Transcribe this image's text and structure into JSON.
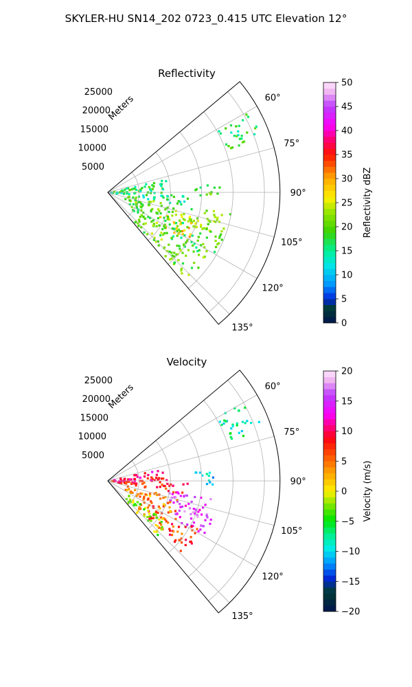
{
  "figure": {
    "title": "SKYLER-HU  SN14_202  0723_0.415 UTC Elevation 12°"
  },
  "chart_data": [
    {
      "type": "heatmap",
      "subtype": "polar-sector",
      "title": "Reflectivity",
      "range_axis_label": "Meters",
      "range_ticks": [
        5000,
        10000,
        15000,
        20000,
        25000
      ],
      "range_tick_labels": [
        "5000",
        "10000",
        "15000",
        "20000",
        "25000"
      ],
      "rlim": [
        0,
        27500
      ],
      "theta_ticks_deg": [
        60,
        75,
        90,
        105,
        120,
        135
      ],
      "theta_tick_labels": [
        "60°",
        "75°",
        "90°",
        "105°",
        "120°",
        "135°"
      ],
      "theta_range_deg": [
        50,
        140
      ],
      "grid": true,
      "colorbar": {
        "label": "Reflectivity dBZ",
        "min": 0,
        "max": 50,
        "ticks": [
          0,
          5,
          10,
          15,
          20,
          25,
          30,
          35,
          40,
          45,
          50
        ],
        "tick_labels": [
          "0",
          "5",
          "10",
          "15",
          "20",
          "25",
          "30",
          "35",
          "40",
          "45",
          "50"
        ]
      },
      "echo_regions": [
        {
          "theta_deg": [
            78,
            92
          ],
          "range_m": [
            1000,
            9500
          ],
          "value": 17
        },
        {
          "theta_deg": [
            92,
            100
          ],
          "range_m": [
            500,
            13000
          ],
          "value": 15
        },
        {
          "theta_deg": [
            100,
            112
          ],
          "range_m": [
            3000,
            20000
          ],
          "value": 21
        },
        {
          "theta_deg": [
            106,
            112
          ],
          "range_m": [
            12000,
            17000
          ],
          "value": 25
        },
        {
          "theta_deg": [
            110,
            122
          ],
          "range_m": [
            9000,
            15000
          ],
          "value": 28
        },
        {
          "theta_deg": [
            112,
            126
          ],
          "range_m": [
            4000,
            20000
          ],
          "value": 19
        },
        {
          "theta_deg": [
            124,
            138
          ],
          "range_m": [
            6000,
            19000
          ],
          "value": 21
        },
        {
          "theta_deg": [
            60,
            72
          ],
          "range_m": [
            20000,
            26000
          ],
          "value": 17
        },
        {
          "theta_deg": [
            84,
            92
          ],
          "range_m": [
            14000,
            18000
          ],
          "value": 19
        }
      ]
    },
    {
      "type": "heatmap",
      "subtype": "polar-sector",
      "title": "Velocity",
      "range_axis_label": "Meters",
      "range_ticks": [
        5000,
        10000,
        15000,
        20000,
        25000
      ],
      "range_tick_labels": [
        "5000",
        "10000",
        "15000",
        "20000",
        "25000"
      ],
      "rlim": [
        0,
        27500
      ],
      "theta_ticks_deg": [
        60,
        75,
        90,
        105,
        120,
        135
      ],
      "theta_tick_labels": [
        "60°",
        "75°",
        "90°",
        "105°",
        "120°",
        "135°"
      ],
      "theta_range_deg": [
        50,
        140
      ],
      "grid": true,
      "colorbar": {
        "label": "Velocity (m/s)",
        "min": -20,
        "max": 20,
        "ticks": [
          -20,
          -15,
          -10,
          -5,
          0,
          5,
          10,
          15,
          20
        ],
        "tick_labels": [
          "−20",
          "−15",
          "−10",
          "−5",
          "0",
          "5",
          "10",
          "15",
          "20"
        ]
      },
      "echo_regions": [
        {
          "theta_deg": [
            78,
            92
          ],
          "range_m": [
            1000,
            9500
          ],
          "value": 10
        },
        {
          "theta_deg": [
            92,
            100
          ],
          "range_m": [
            500,
            13000
          ],
          "value": 8
        },
        {
          "theta_deg": [
            98,
            110
          ],
          "range_m": [
            10000,
            17000
          ],
          "value": 15
        },
        {
          "theta_deg": [
            108,
            120
          ],
          "range_m": [
            11000,
            18000
          ],
          "value": 15
        },
        {
          "theta_deg": [
            104,
            118
          ],
          "range_m": [
            3000,
            12000
          ],
          "value": 4
        },
        {
          "theta_deg": [
            118,
            134
          ],
          "range_m": [
            6000,
            17000
          ],
          "value": 7
        },
        {
          "theta_deg": [
            124,
            138
          ],
          "range_m": [
            4000,
            12000
          ],
          "value": -2
        },
        {
          "theta_deg": [
            60,
            72
          ],
          "range_m": [
            20000,
            26000
          ],
          "value": -8
        },
        {
          "theta_deg": [
            84,
            92
          ],
          "range_m": [
            14000,
            18000
          ],
          "value": -10
        }
      ]
    }
  ]
}
